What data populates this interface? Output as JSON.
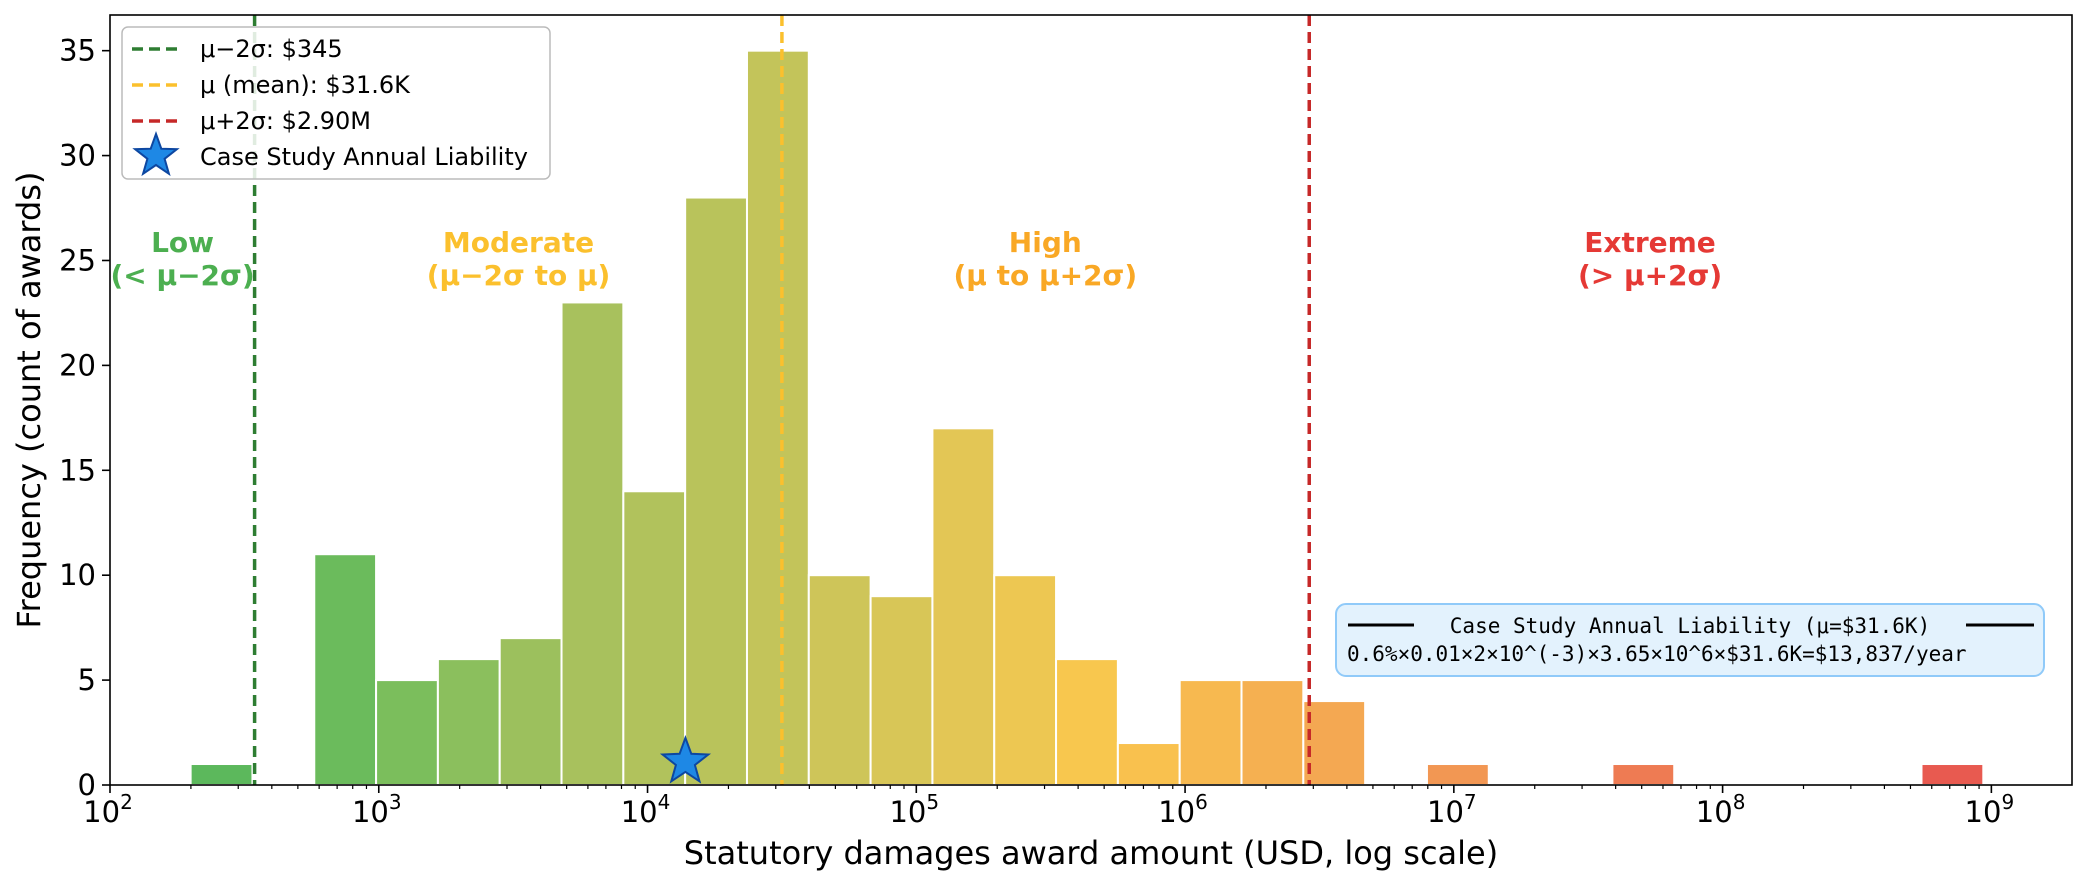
{
  "chart_data": {
    "type": "bar",
    "title": "",
    "xlabel": "Statutory damages award amount (USD, log scale)",
    "ylabel": "Frequency (count of awards)",
    "xscale": "log",
    "xlim_log10": [
      2.0,
      9.3
    ],
    "ylim": [
      0,
      36.7
    ],
    "x_ticks": [
      {
        "base": "10",
        "exp": "2",
        "log10": 2
      },
      {
        "base": "10",
        "exp": "3",
        "log10": 3
      },
      {
        "base": "10",
        "exp": "4",
        "log10": 4
      },
      {
        "base": "10",
        "exp": "5",
        "log10": 5
      },
      {
        "base": "10",
        "exp": "6",
        "log10": 6
      },
      {
        "base": "10",
        "exp": "7",
        "log10": 7
      },
      {
        "base": "10",
        "exp": "8",
        "log10": 8
      },
      {
        "base": "10",
        "exp": "9",
        "log10": 9
      }
    ],
    "y_ticks": [
      0,
      5,
      10,
      15,
      20,
      25,
      30,
      35
    ],
    "bin_width_log10": 0.23,
    "bins": [
      {
        "log10_start": 2.3,
        "count": 1,
        "color": "#5cb85c"
      },
      {
        "log10_start": 2.76,
        "count": 11,
        "color": "#6bbb5c"
      },
      {
        "log10_start": 2.99,
        "count": 5,
        "color": "#7bbe5c"
      },
      {
        "log10_start": 3.22,
        "count": 6,
        "color": "#8bbf5d"
      },
      {
        "log10_start": 3.45,
        "count": 7,
        "color": "#9cc05d"
      },
      {
        "log10_start": 3.68,
        "count": 23,
        "color": "#a8c15d"
      },
      {
        "log10_start": 3.91,
        "count": 14,
        "color": "#b1c25c"
      },
      {
        "log10_start": 4.14,
        "count": 28,
        "color": "#b9c35b"
      },
      {
        "log10_start": 4.37,
        "count": 35,
        "color": "#c3c45a"
      },
      {
        "log10_start": 4.6,
        "count": 10,
        "color": "#cec559"
      },
      {
        "log10_start": 4.83,
        "count": 9,
        "color": "#d8c657"
      },
      {
        "log10_start": 5.06,
        "count": 17,
        "color": "#e3c655"
      },
      {
        "log10_start": 5.29,
        "count": 10,
        "color": "#edc752"
      },
      {
        "log10_start": 5.52,
        "count": 6,
        "color": "#f8c74e"
      },
      {
        "log10_start": 5.75,
        "count": 2,
        "color": "#f9c14e"
      },
      {
        "log10_start": 5.98,
        "count": 5,
        "color": "#f7b950"
      },
      {
        "log10_start": 6.21,
        "count": 5,
        "color": "#f5b051"
      },
      {
        "log10_start": 6.44,
        "count": 4,
        "color": "#f4a852"
      },
      {
        "log10_start": 6.9,
        "count": 1,
        "color": "#f29753"
      },
      {
        "log10_start": 7.59,
        "count": 1,
        "color": "#ee7b53"
      },
      {
        "log10_start": 8.74,
        "count": 1,
        "color": "#e85a50"
      }
    ],
    "reference_lines": [
      {
        "label": "μ−2σ: $345",
        "log10": 2.538,
        "color": "#2e7d32"
      },
      {
        "label": "μ (mean): $31.6K",
        "log10": 4.5,
        "color": "#fbc02d"
      },
      {
        "label": "μ+2σ: $2.90M",
        "log10": 6.462,
        "color": "#c62828"
      }
    ],
    "marker": {
      "label": "Case Study Annual Liability",
      "log10": 4.141,
      "y": 1.1,
      "color": "#1e88e5"
    },
    "regions": [
      {
        "title": "Low",
        "subtitle": "(< μ−2σ)",
        "log10_center": 2.27,
        "color": "#4caf50"
      },
      {
        "title": "Moderate",
        "subtitle": "(μ−2σ to μ)",
        "log10_center": 3.52,
        "color": "#fbc02d"
      },
      {
        "title": "High",
        "subtitle": "(μ to μ+2σ)",
        "log10_center": 5.48,
        "color": "#f9a825"
      },
      {
        "title": "Extreme",
        "subtitle": "(> μ+2σ)",
        "log10_center": 7.73,
        "color": "#e53935"
      }
    ],
    "annotation": {
      "title": "Case Study Annual Liability (μ=$31.6K)",
      "formula": "0.6%×0.01×2×10^(-3)×3.65×10^6×$31.6K=$13,837/year"
    },
    "legend": {
      "position": "top-left"
    },
    "grid": false
  }
}
